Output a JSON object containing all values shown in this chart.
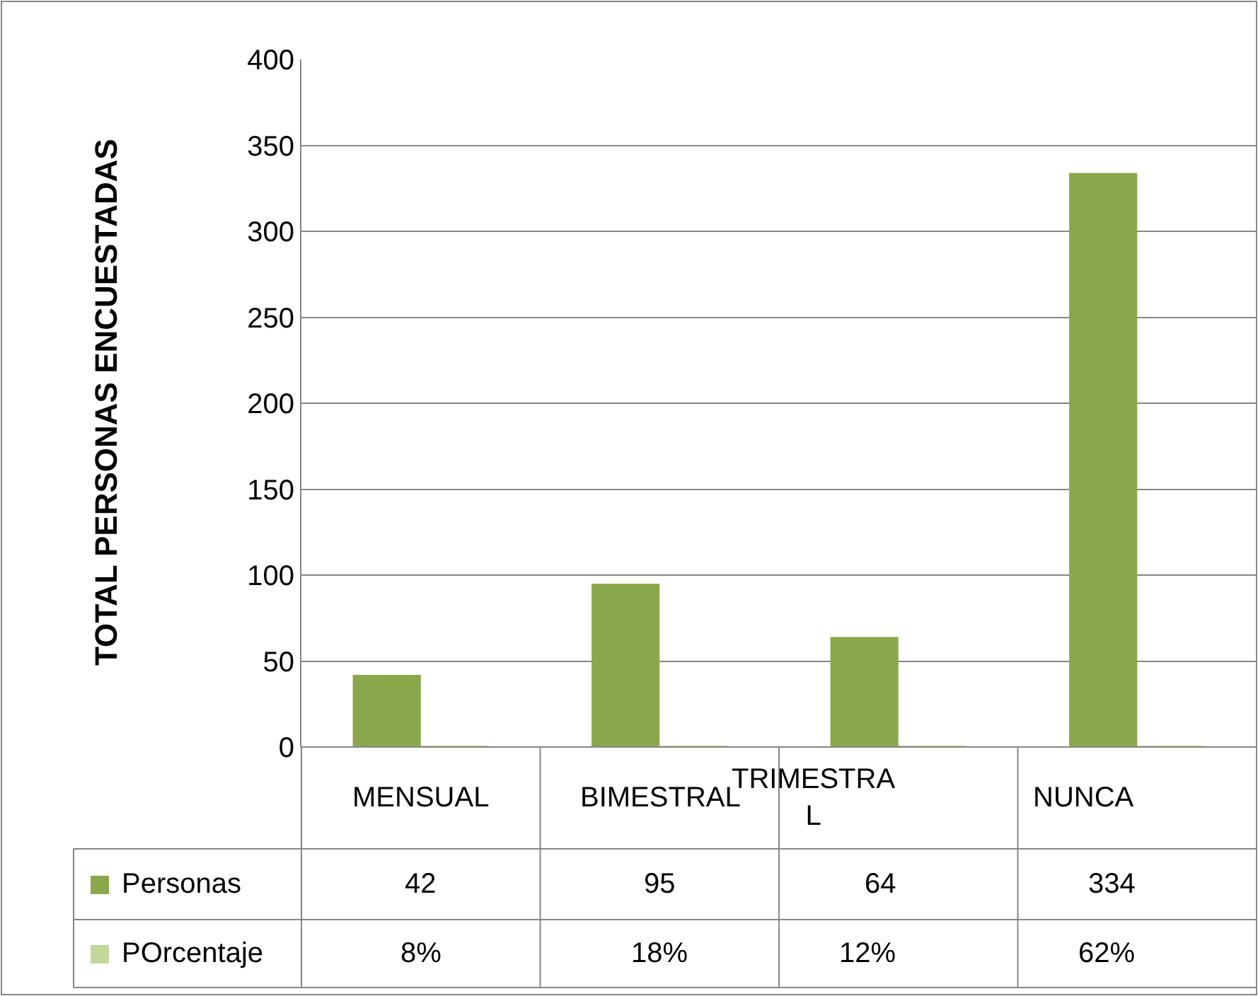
{
  "chart_data": {
    "type": "bar",
    "ylabel": "TOTAL PERSONAS ENCUESTADAS",
    "categories": [
      "MENSUAL",
      "BIMESTRAL",
      "TRIMESTRAL",
      "NUNCA"
    ],
    "series": [
      {
        "name": "Personas",
        "color": "#8aa84b",
        "values": [
          42,
          95,
          64,
          334
        ]
      },
      {
        "name": "POrcentaje",
        "color": "#c3d69b",
        "values": [
          0.08,
          0.18,
          0.12,
          0.62
        ],
        "value_labels": [
          "8%",
          "18%",
          "12%",
          "62%"
        ]
      }
    ],
    "ylim": [
      0,
      400
    ],
    "yticks": [
      0,
      50,
      100,
      150,
      200,
      250,
      300,
      350,
      400
    ],
    "grid": "y",
    "legend": "bottom left",
    "data_labels": true
  }
}
